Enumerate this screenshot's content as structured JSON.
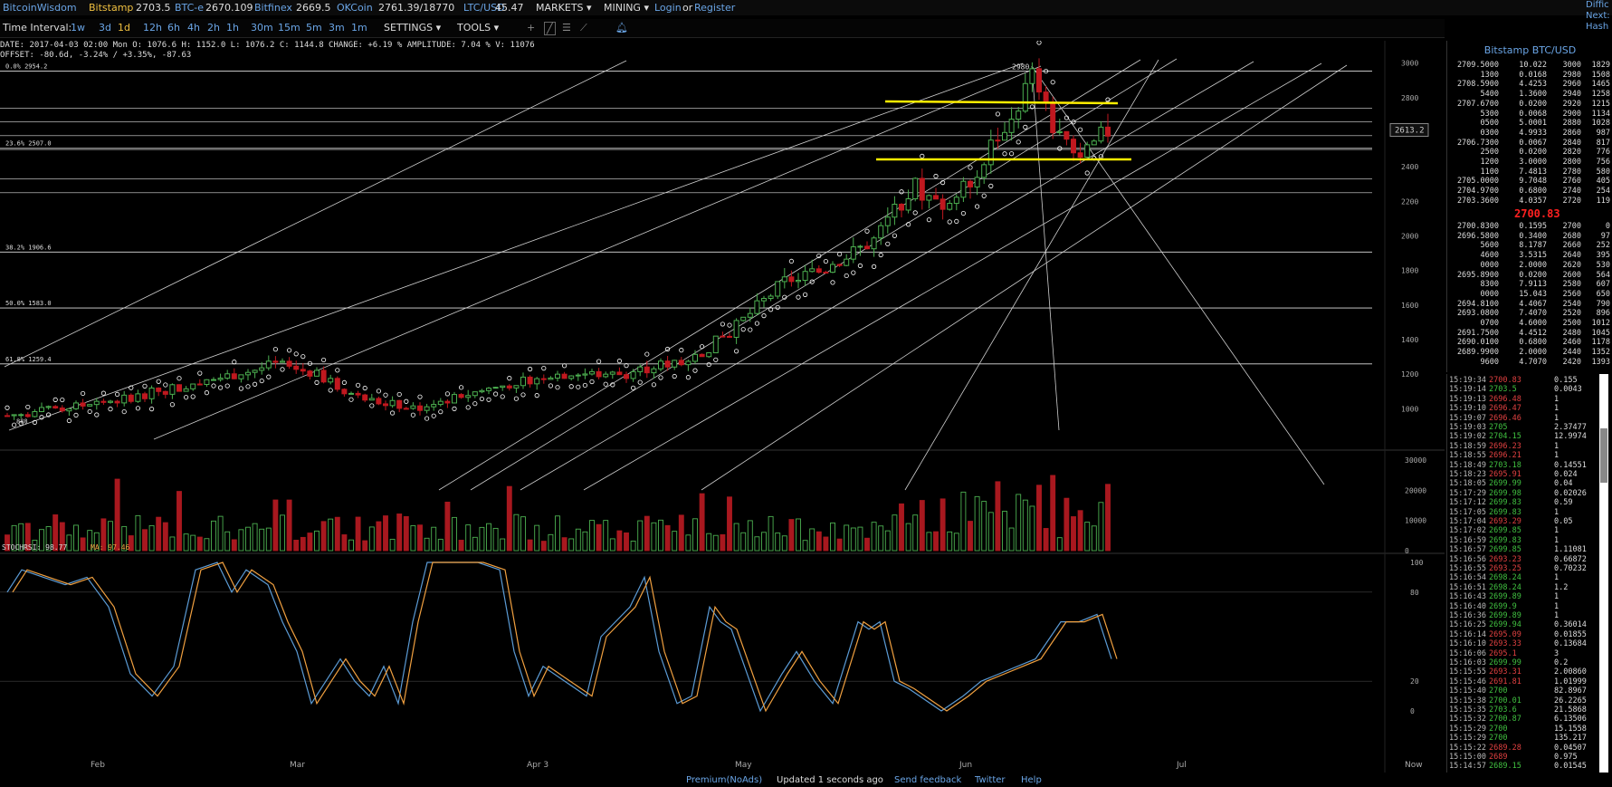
{
  "topbar": {
    "logo": "BitcoinWisdom",
    "tickers": [
      {
        "name": "Bitstamp",
        "price": "2703.5"
      },
      {
        "name": "BTC-e",
        "price": "2670.109"
      },
      {
        "name": "Bitfinex",
        "price": "2669.5"
      },
      {
        "name": "OKCoin",
        "price": "2761.39/18770"
      },
      {
        "name": "LTC/USD",
        "price": "45.47"
      }
    ],
    "markets": "MARKETS",
    "mining": "MINING",
    "login": "Login",
    "or": "or",
    "register": "Register",
    "right_items": [
      "Diffic",
      "Next:",
      "Hash"
    ]
  },
  "toolbar": {
    "label": "Time Interval:",
    "intervals": [
      "1w",
      "3d",
      "1d",
      "12h",
      "6h",
      "4h",
      "2h",
      "1h",
      "30m",
      "15m",
      "5m",
      "3m",
      "1m"
    ],
    "settings": "SETTINGS",
    "tools": "TOOLS"
  },
  "info": {
    "line1": "DATE: 2017-04-03 02:00 Mon   O: 1076.6   H: 1152.0   L: 1076.2   C: 1144.8   CHANGE: +6.19 %   AMPLITUDE: 7.04 %   V: 11076",
    "line2": "OFFSET: -80.6d, -3.24% / +3.35%, -87.63"
  },
  "chart_data": {
    "type": "candlestick",
    "yaxis": [
      "3000",
      "2800",
      "2600",
      "2400",
      "2200",
      "2000",
      "1800",
      "1600",
      "1400",
      "1200",
      "1000"
    ],
    "ylim": [
      800,
      3050
    ],
    "fib_levels": [
      {
        "label": "0.0% 2954.2",
        "value": 2954.2
      },
      {
        "label": "23.6% 2507.0",
        "value": 2507.0
      },
      {
        "label": "38.2% 1906.6",
        "value": 1906.6
      },
      {
        "label": "50.0% 1583.0",
        "value": 1583.0
      },
      {
        "label": "61.8% 1259.4",
        "value": 1259.4
      }
    ],
    "price_label": "2613.2",
    "high_label": "2980",
    "low_label": "888",
    "xaxis": [
      "Feb",
      "Mar",
      "Apr 3",
      "May",
      "Jun",
      "Jul",
      "Now"
    ],
    "volume_axis": [
      "30000",
      "20000",
      "10000",
      "0"
    ],
    "stochrsi": {
      "label": "STOCHRSI: 98.77",
      "ma_label": "MA: 97.46",
      "axis": [
        "100",
        "80",
        "20",
        "0"
      ]
    },
    "colors": {
      "up": "#4caf50",
      "down": "#c0181f",
      "sar": "#ffffff",
      "fib": "#dddddd",
      "support": "#ffee00",
      "k": "#5b9bd5",
      "d": "#f0a040"
    }
  },
  "orderbook": {
    "title": "Bitstamp BTC/USD",
    "asks": [
      [
        "2709.5000",
        "10.022",
        "3000",
        "1829"
      ],
      [
        "1300",
        "0.0168",
        "2980",
        "1508"
      ],
      [
        "2708.5900",
        "4.4253",
        "2960",
        "1465"
      ],
      [
        "5400",
        "1.3600",
        "2940",
        "1258"
      ],
      [
        "2707.6700",
        "0.0200",
        "2920",
        "1215"
      ],
      [
        "5300",
        "0.0068",
        "2900",
        "1134"
      ],
      [
        "0500",
        "5.0001",
        "2880",
        "1028"
      ],
      [
        "0300",
        "4.9933",
        "2860",
        "987"
      ],
      [
        "2706.7300",
        "0.0067",
        "2840",
        "817"
      ],
      [
        "2500",
        "0.0200",
        "2820",
        "776"
      ],
      [
        "1200",
        "3.0000",
        "2800",
        "756"
      ],
      [
        "1100",
        "7.4813",
        "2780",
        "580"
      ],
      [
        "2705.0000",
        "9.7048",
        "2760",
        "405"
      ],
      [
        "2704.9700",
        "0.6800",
        "2740",
        "254"
      ],
      [
        "2703.3600",
        "4.0357",
        "2720",
        "119"
      ]
    ],
    "last": "2700.83",
    "bids": [
      [
        "2700.8300",
        "0.1595",
        "2700",
        "0"
      ],
      [
        "2696.5800",
        "0.3400",
        "2680",
        "97"
      ],
      [
        "5600",
        "8.1787",
        "2660",
        "252"
      ],
      [
        "4600",
        "3.5315",
        "2640",
        "395"
      ],
      [
        "0000",
        "2.0000",
        "2620",
        "530"
      ],
      [
        "2695.8900",
        "0.0200",
        "2600",
        "564"
      ],
      [
        "8300",
        "7.9113",
        "2580",
        "607"
      ],
      [
        "0000",
        "15.043",
        "2560",
        "650"
      ],
      [
        "2694.8100",
        "4.4067",
        "2540",
        "790"
      ],
      [
        "2693.0800",
        "7.4070",
        "2520",
        "896"
      ],
      [
        "0700",
        "4.6000",
        "2500",
        "1012"
      ],
      [
        "2691.7500",
        "4.4512",
        "2480",
        "1045"
      ],
      [
        "2690.0100",
        "0.6800",
        "2460",
        "1178"
      ],
      [
        "2689.9900",
        "2.0000",
        "2440",
        "1352"
      ],
      [
        "9600",
        "4.7070",
        "2420",
        "1393"
      ]
    ]
  },
  "trades": [
    [
      "15:19:34",
      "2700.83",
      "0.155",
      "r"
    ],
    [
      "15:19:14",
      "2703.5",
      "0.0043",
      "g"
    ],
    [
      "15:19:13",
      "2696.48",
      "1",
      "r"
    ],
    [
      "15:19:10",
      "2696.47",
      "1",
      "r"
    ],
    [
      "15:19:07",
      "2696.46",
      "1",
      "r"
    ],
    [
      "15:19:03",
      "2705",
      "2.37477",
      "g"
    ],
    [
      "15:19:02",
      "2704.15",
      "12.9974",
      "g"
    ],
    [
      "15:18:59",
      "2696.23",
      "1",
      "r"
    ],
    [
      "15:18:55",
      "2696.21",
      "1",
      "r"
    ],
    [
      "15:18:49",
      "2703.18",
      "0.14551",
      "g"
    ],
    [
      "15:18:23",
      "2695.91",
      "0.024",
      "r"
    ],
    [
      "15:18:05",
      "2699.99",
      "0.04",
      "g"
    ],
    [
      "15:17:29",
      "2699.98",
      "0.02026",
      "g"
    ],
    [
      "15:17:12",
      "2699.83",
      "0.59",
      "g"
    ],
    [
      "15:17:05",
      "2699.83",
      "1",
      "g"
    ],
    [
      "15:17:04",
      "2693.29",
      "0.05",
      "r"
    ],
    [
      "15:17:02",
      "2699.85",
      "1",
      "g"
    ],
    [
      "15:16:59",
      "2699.83",
      "1",
      "g"
    ],
    [
      "15:16:57",
      "2699.85",
      "1.11081",
      "g"
    ],
    [
      "15:16:56",
      "2693.23",
      "0.66872",
      "r"
    ],
    [
      "15:16:55",
      "2693.25",
      "0.70232",
      "r"
    ],
    [
      "15:16:54",
      "2698.24",
      "1",
      "g"
    ],
    [
      "15:16:51",
      "2698.24",
      "1.2",
      "g"
    ],
    [
      "15:16:43",
      "2699.89",
      "1",
      "g"
    ],
    [
      "15:16:40",
      "2699.9",
      "1",
      "g"
    ],
    [
      "15:16:36",
      "2699.89",
      "1",
      "g"
    ],
    [
      "15:16:25",
      "2699.94",
      "0.36014",
      "g"
    ],
    [
      "15:16:14",
      "2695.09",
      "0.01855",
      "r"
    ],
    [
      "15:16:10",
      "2693.33",
      "0.13684",
      "r"
    ],
    [
      "15:16:06",
      "2695.1",
      "3",
      "r"
    ],
    [
      "15:16:03",
      "2699.99",
      "0.2",
      "g"
    ],
    [
      "15:15:55",
      "2693.31",
      "2.00860",
      "r"
    ],
    [
      "15:15:46",
      "2691.81",
      "1.01999",
      "r"
    ],
    [
      "15:15:40",
      "2700",
      "82.8967",
      "g"
    ],
    [
      "15:15:38",
      "2700.01",
      "26.2265",
      "g"
    ],
    [
      "15:15:35",
      "2703.6",
      "21.5868",
      "g"
    ],
    [
      "15:15:32",
      "2700.87",
      "6.13506",
      "g"
    ],
    [
      "15:15:29",
      "2700",
      "15.1558",
      "g"
    ],
    [
      "15:15:29",
      "2700",
      "135.217",
      "g"
    ],
    [
      "15:15:22",
      "2689.28",
      "0.04507",
      "r"
    ],
    [
      "15:15:00",
      "2689",
      "0.975",
      "r"
    ],
    [
      "15:14:57",
      "2689.15",
      "0.01545",
      "g"
    ]
  ],
  "footer": {
    "premium": "Premium(NoAds)",
    "updated": "Updated 1 seconds ago",
    "feedback": "Send feedback",
    "twitter": "Twitter",
    "help": "Help"
  }
}
